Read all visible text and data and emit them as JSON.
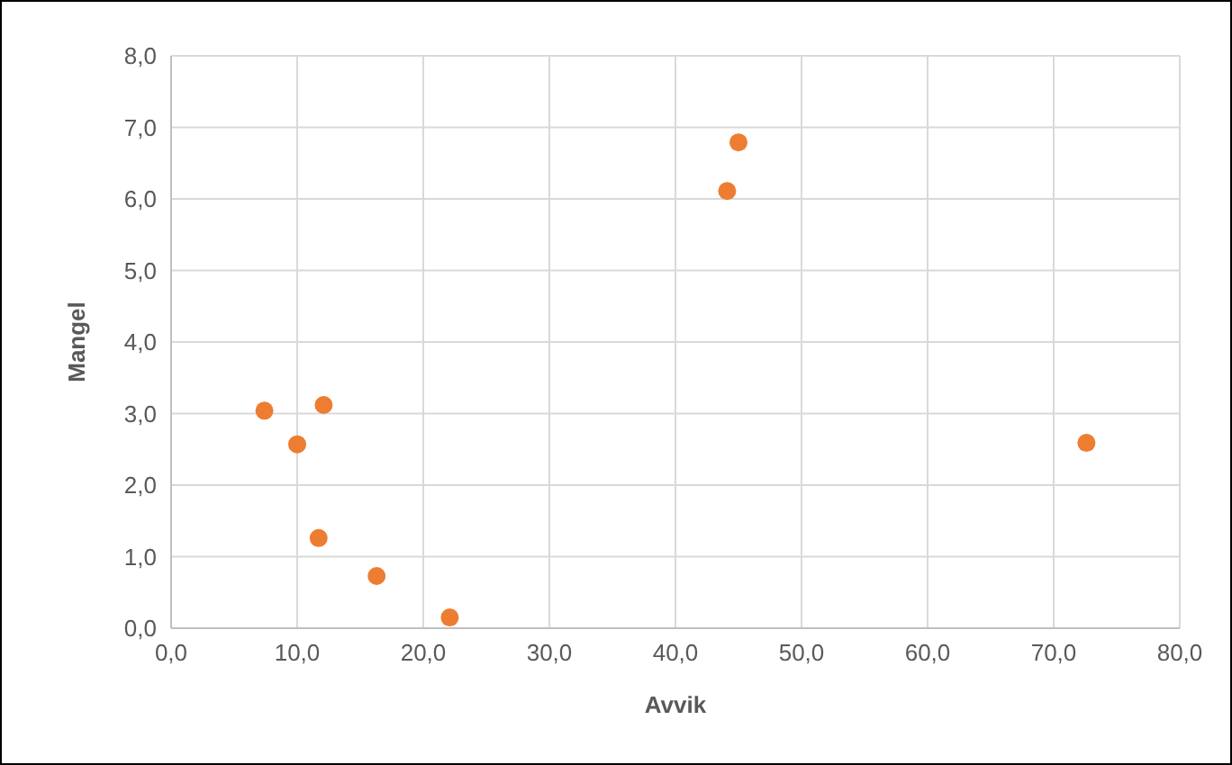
{
  "chart_data": {
    "type": "scatter",
    "xlabel": "Avvik",
    "ylabel": "Mangel",
    "x": [
      7.4,
      10.0,
      12.1,
      11.7,
      16.3,
      22.1,
      44.1,
      45.0,
      72.6
    ],
    "series": [
      {
        "color": "#ed7d31",
        "values": [
          3.04,
          2.57,
          3.12,
          1.26,
          0.73,
          0.15,
          6.11,
          6.79,
          2.59
        ]
      }
    ],
    "xlim": [
      0,
      80
    ],
    "ylim": [
      0,
      8
    ],
    "xticks": [
      {
        "value": 0,
        "label": "0,0"
      },
      {
        "value": 10,
        "label": "10,0"
      },
      {
        "value": 20,
        "label": "20,0"
      },
      {
        "value": 30,
        "label": "30,0"
      },
      {
        "value": 40,
        "label": "40,0"
      },
      {
        "value": 50,
        "label": "50,0"
      },
      {
        "value": 60,
        "label": "60,0"
      },
      {
        "value": 70,
        "label": "70,0"
      },
      {
        "value": 80,
        "label": "80,0"
      }
    ],
    "yticks": [
      {
        "value": 0,
        "label": "0,0"
      },
      {
        "value": 1,
        "label": "1,0"
      },
      {
        "value": 2,
        "label": "2,0"
      },
      {
        "value": 3,
        "label": "3,0"
      },
      {
        "value": 4,
        "label": "4,0"
      },
      {
        "value": 5,
        "label": "5,0"
      },
      {
        "value": 6,
        "label": "6,0"
      },
      {
        "value": 7,
        "label": "7,0"
      },
      {
        "value": 8,
        "label": "8,0"
      }
    ],
    "grid": true,
    "marker": "circle"
  }
}
